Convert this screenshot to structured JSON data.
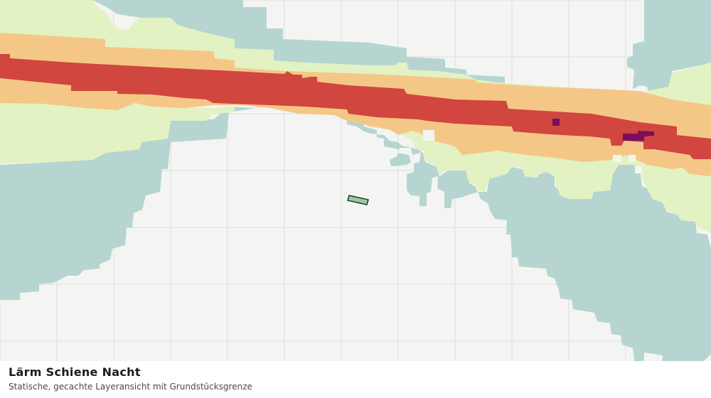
{
  "map": {
    "layer_name": "Lärm Schiene Nacht",
    "colors": {
      "background": "#f4f5f3",
      "grid": "#dedede",
      "band_teal": "#b6d5d1",
      "band_light_green": "#e2f2c2",
      "band_orange": "#f5c786",
      "band_red": "#d1463f",
      "band_purple": "#7a0d5d",
      "parcel_fill": "#9cc9a5",
      "parcel_stroke": "#1c3d28"
    }
  },
  "footer": {
    "title": "Lärm Schiene Nacht",
    "subtitle": "Statische, gecachte Layeransicht mit Grundstücksgrenze"
  }
}
